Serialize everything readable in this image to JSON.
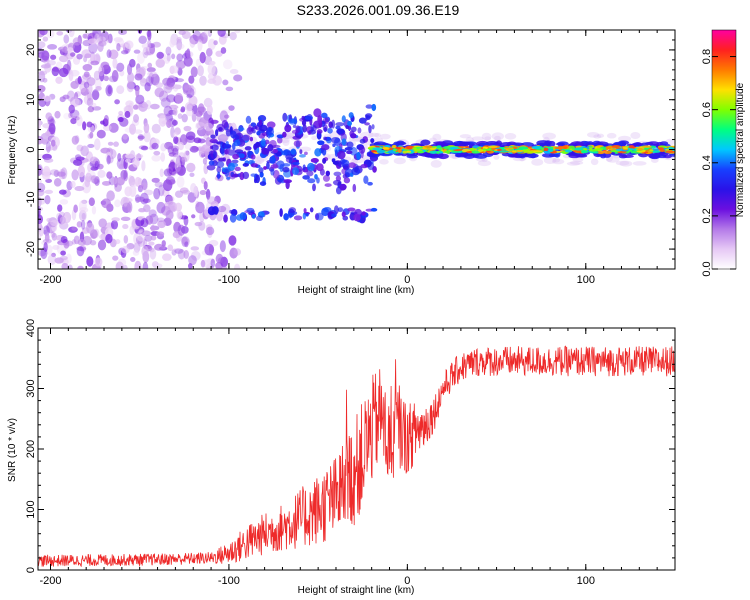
{
  "title": "S233.2026.001.09.36.E19",
  "chart_data": [
    {
      "type": "heatmap",
      "name": "spectrogram",
      "xlabel": "Height of straight line (km)",
      "ylabel": "Frequency (Hz)",
      "xlim": [
        -207,
        150
      ],
      "ylim": [
        -24,
        24
      ],
      "xticks": [
        -200,
        -100,
        0,
        100
      ],
      "yticks": [
        -20,
        -10,
        0,
        10,
        20
      ],
      "colorbar": {
        "label": "Normalized spectral amplitude",
        "range": [
          0,
          0.9
        ],
        "ticks": [
          "0.0",
          "0.2",
          "0.4",
          "0.6",
          "0.8"
        ],
        "colormap": [
          "#ffffff",
          "#e6c8f5",
          "#b47ae8",
          "#6b0fe0",
          "#2a12e8",
          "#1740ff",
          "#00c8ff",
          "#00ff80",
          "#80ff00",
          "#ffe000",
          "#ff7a00",
          "#ff2020",
          "#ff00a0"
        ]
      },
      "regions": [
        {
          "x_range": [
            -207,
            -110
          ],
          "description_level": "noise",
          "amplitude_range": [
            0.0,
            0.15
          ]
        },
        {
          "x_range": [
            -110,
            -20
          ],
          "description_level": "clustered signal",
          "amplitude_range": [
            0.1,
            0.3
          ]
        },
        {
          "x_range": [
            -20,
            150
          ],
          "description_level": "strong line near 0 Hz",
          "amplitude_range": [
            0.2,
            0.9
          ]
        }
      ]
    },
    {
      "type": "line",
      "name": "snr",
      "xlabel": "Height of straight line (km)",
      "ylabel": "SNR (10 * v/v)",
      "xlim": [
        -207,
        150
      ],
      "ylim": [
        0,
        400
      ],
      "xticks": [
        -200,
        -100,
        0,
        100
      ],
      "yticks": [
        0,
        100,
        200,
        300,
        400
      ],
      "color": "#ee2a2a",
      "series": [
        {
          "name": "SNR",
          "x": [
            -207,
            -180,
            -150,
            -130,
            -110,
            -100,
            -90,
            -80,
            -70,
            -60,
            -50,
            -40,
            -35,
            -30,
            -25,
            -20,
            -15,
            -10,
            -5,
            0,
            5,
            10,
            15,
            20,
            25,
            30,
            40,
            50,
            60,
            80,
            100,
            120,
            150
          ],
          "values": [
            15,
            16,
            17,
            18,
            20,
            28,
            45,
            60,
            70,
            85,
            100,
            120,
            140,
            160,
            190,
            230,
            260,
            200,
            240,
            215,
            230,
            240,
            260,
            300,
            320,
            335,
            345,
            345,
            345,
            345,
            345,
            345,
            345
          ],
          "noise_amplitude": [
            10,
            10,
            10,
            10,
            10,
            20,
            30,
            35,
            40,
            50,
            60,
            70,
            80,
            90,
            90,
            90,
            80,
            80,
            70,
            60,
            50,
            40,
            30,
            25,
            25,
            25,
            25,
            25,
            25,
            25,
            25,
            25,
            25
          ]
        }
      ]
    }
  ]
}
